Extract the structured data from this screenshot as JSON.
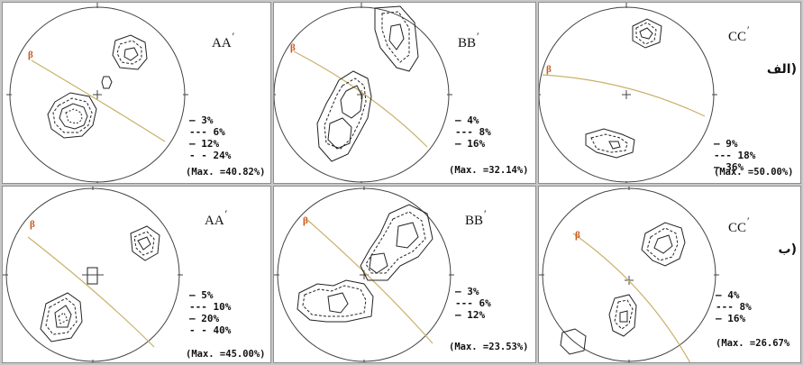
{
  "rows": [
    {
      "label": "(الف",
      "panels": [
        {
          "title": "AA",
          "prime": "′",
          "legend": [
            "— 3%",
            "--- 6%",
            "— 12%",
            "- - 24%"
          ],
          "max": "(Max. =40.82%)",
          "beta": "β"
        },
        {
          "title": "BB",
          "prime": "′",
          "legend": [
            "— 4%",
            "--- 8%",
            "— 16%"
          ],
          "max": "(Max. =32.14%)",
          "beta": "β"
        },
        {
          "title": "CC",
          "prime": "′",
          "legend": [
            "— 9%",
            "--- 18%",
            "— 36%"
          ],
          "max": "(Max. =50.00%)",
          "beta": "β"
        }
      ]
    },
    {
      "label": "(ب",
      "panels": [
        {
          "title": "AA",
          "prime": "′",
          "legend": [
            "— 5%",
            "--- 10%",
            "— 20%",
            "- - 40%"
          ],
          "max": "(Max. =45.00%)",
          "beta": "β"
        },
        {
          "title": "BB",
          "prime": "′",
          "legend": [
            "— 3%",
            "--- 6%",
            "— 12%"
          ],
          "max": "(Max. =23.53%)",
          "beta": "β"
        },
        {
          "title": "CC",
          "prime": "′",
          "legend": [
            "— 4%",
            "--- 8%",
            "— 16%"
          ],
          "max": "(Max. =26.67%",
          "beta": "β"
        }
      ]
    }
  ],
  "colors": {
    "background": "#c7c7c7",
    "panel": "#ffffff",
    "great_circle": "#c9b06a",
    "beta": "#cc5a1a",
    "contour": "#222222"
  }
}
